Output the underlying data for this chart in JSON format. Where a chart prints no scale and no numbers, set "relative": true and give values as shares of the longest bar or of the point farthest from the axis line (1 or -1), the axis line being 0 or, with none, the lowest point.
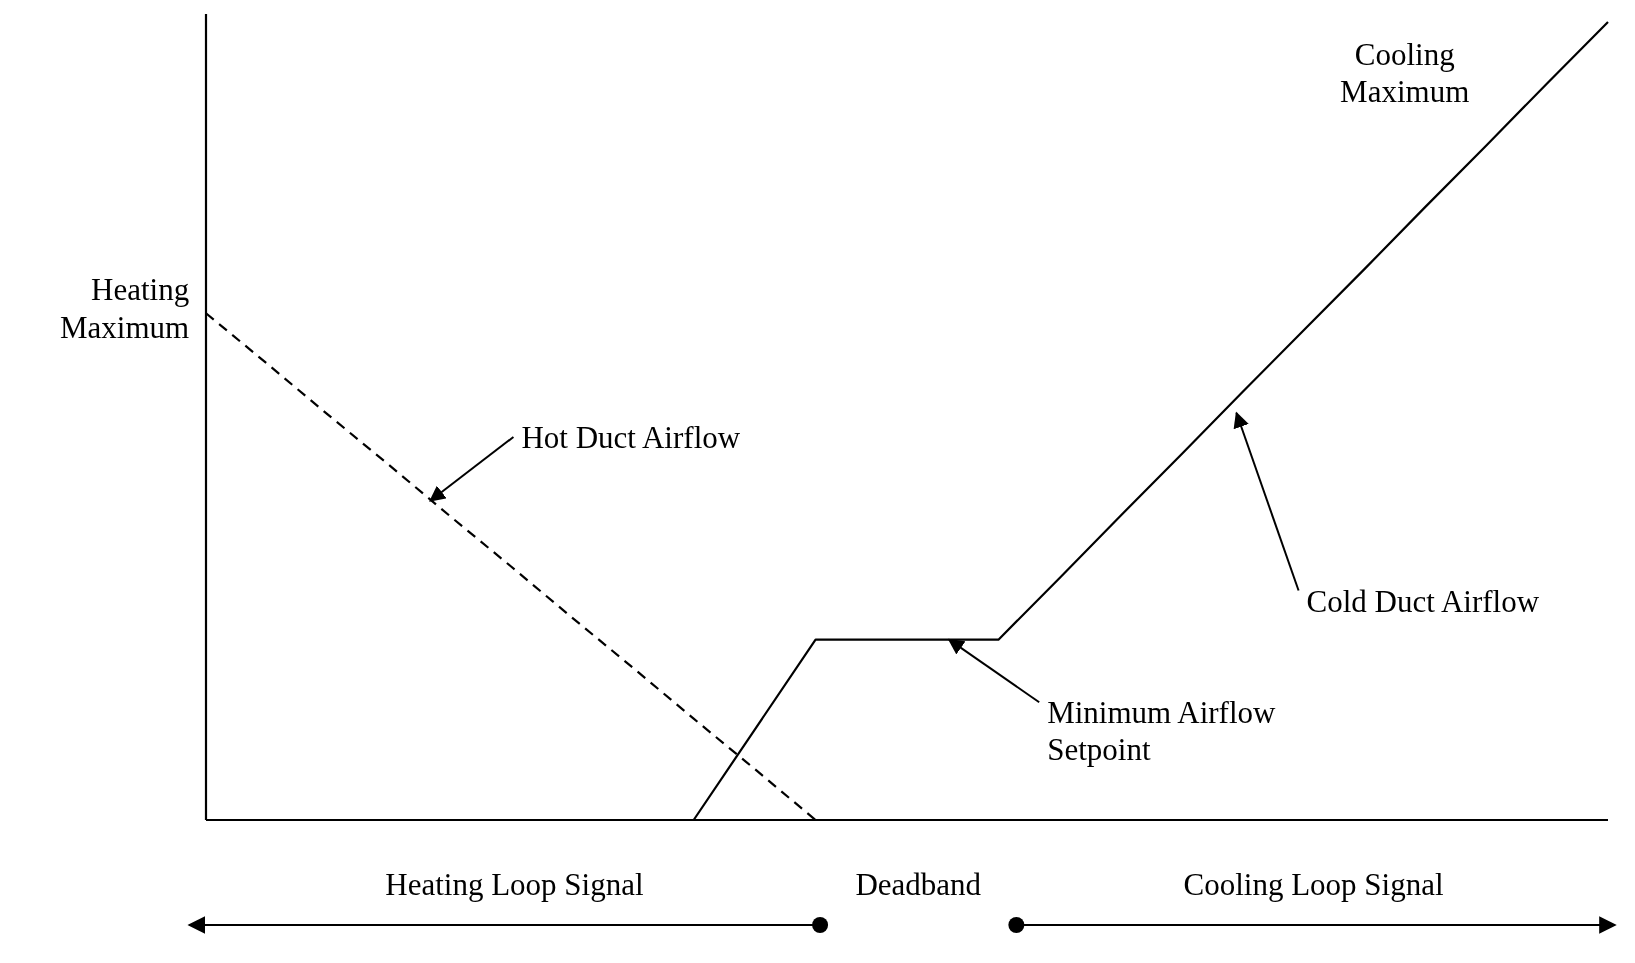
{
  "chart_data": {
    "type": "line",
    "relative": true,
    "categories": [
      null,
      null,
      null,
      null,
      null,
      null,
      null,
      null,
      null,
      null,
      null,
      null,
      null,
      null,
      null,
      null,
      null,
      null,
      null,
      null,
      null,
      null,
      null,
      null
    ],
    "series": [
      {
        "values": [
          0.635,
          0.572,
          0.508,
          0.445,
          0.381,
          0.318,
          0.254,
          0.191,
          0.127,
          0.064,
          0,
          null,
          null,
          null,
          null,
          null,
          null,
          null,
          null,
          null,
          null,
          null,
          null,
          null
        ],
        "color": "#000000",
        "line_style": "dashed"
      },
      {
        "values": [
          null,
          null,
          null,
          null,
          null,
          null,
          null,
          null,
          0,
          0.113,
          0.226,
          0.226,
          0.226,
          0.226,
          0.303,
          0.381,
          0.458,
          0.536,
          0.613,
          0.69,
          0.768,
          0.845,
          0.923,
          1
        ],
        "color": "#000000",
        "line_style": "solid"
      }
    ],
    "annotations": [
      "Heating Maximum",
      "Cooling Maximum",
      "Hot Duct Airflow",
      "Cold Duct Airflow",
      "Minimum Airflow Setpoint",
      "Heating Loop Signal",
      "Deadband",
      "Cooling Loop Signal"
    ]
  }
}
